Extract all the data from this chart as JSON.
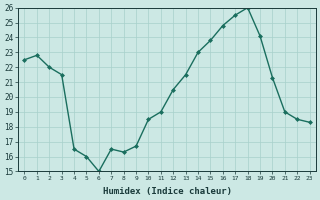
{
  "x": [
    0,
    1,
    2,
    3,
    4,
    5,
    6,
    7,
    8,
    9,
    10,
    11,
    12,
    13,
    14,
    15,
    16,
    17,
    18,
    19,
    20,
    21,
    22,
    23
  ],
  "y": [
    22.5,
    22.8,
    22.0,
    21.5,
    16.5,
    16.0,
    15.0,
    16.5,
    16.3,
    16.7,
    18.5,
    19.0,
    20.5,
    21.5,
    23.0,
    23.8,
    24.8,
    25.5,
    26.0,
    24.1,
    21.3,
    19.0,
    18.5,
    18.3
  ],
  "title": "",
  "xlabel": "Humidex (Indice chaleur)",
  "ylabel": "",
  "ylim": [
    15,
    26
  ],
  "xlim": [
    -0.5,
    23.5
  ],
  "yticks": [
    15,
    16,
    17,
    18,
    19,
    20,
    21,
    22,
    23,
    24,
    25,
    26
  ],
  "xticks": [
    0,
    1,
    2,
    3,
    4,
    5,
    6,
    7,
    8,
    9,
    10,
    11,
    12,
    13,
    14,
    15,
    16,
    17,
    18,
    19,
    20,
    21,
    22,
    23
  ],
  "line_color": "#1a6e5e",
  "marker": "D",
  "marker_size": 2.0,
  "bg_color": "#cce8e4",
  "grid_color": "#a8d0cb",
  "label_color": "#1a3a3a",
  "tick_color": "#1a3a3a"
}
